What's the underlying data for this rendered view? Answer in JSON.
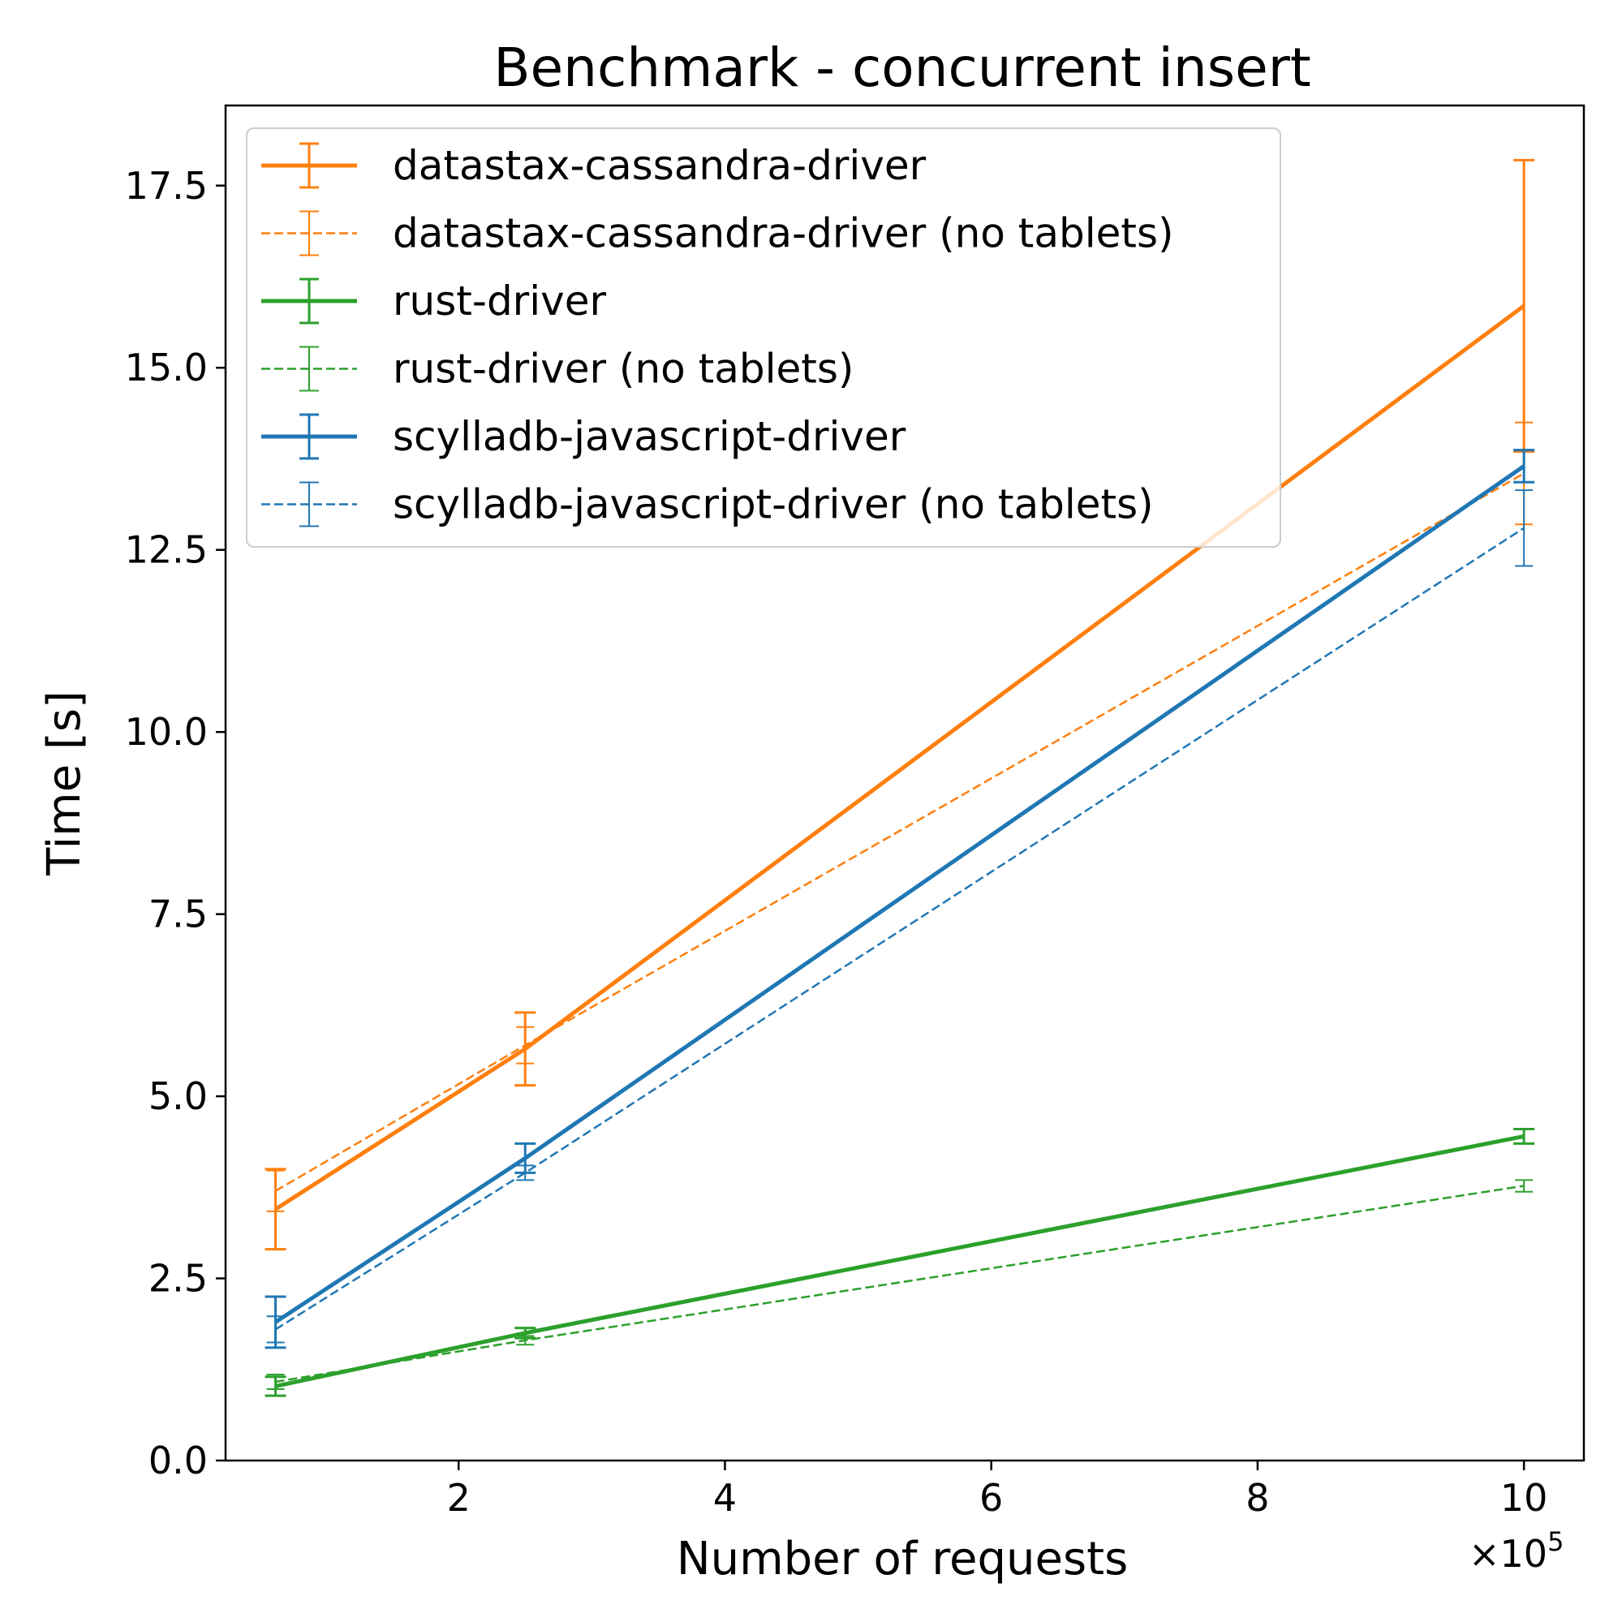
{
  "chart_data": {
    "type": "line",
    "title": "Benchmark - concurrent insert",
    "xlabel": "Number of requests",
    "ylabel": "Time [s]",
    "x_multiplier_base": "×10",
    "x_multiplier_exp": "5",
    "xlim": [
      0.25,
      10.45
    ],
    "ylim": [
      0,
      18.6
    ],
    "xticks": [
      2,
      4,
      6,
      8,
      10
    ],
    "xtick_labels": [
      "2",
      "4",
      "6",
      "8",
      "10"
    ],
    "yticks": [
      0,
      2.5,
      5,
      7.5,
      10,
      12.5,
      15,
      17.5
    ],
    "ytick_labels": [
      "0.0",
      "2.5",
      "5.0",
      "7.5",
      "10.0",
      "12.5",
      "15.0",
      "17.5"
    ],
    "x": [
      0.625,
      2.5,
      10
    ],
    "grid": false,
    "legend_position": "upper-left",
    "series": [
      {
        "name": "datastax-cassandra-driver",
        "color": "#ff7f0e",
        "style": "solid",
        "values": [
          3.45,
          5.65,
          15.85
        ],
        "errors": [
          0.55,
          0.5,
          2.0
        ]
      },
      {
        "name": "datastax-cassandra-driver (no tablets)",
        "color": "#ff7f0e",
        "style": "dashed",
        "values": [
          3.7,
          5.7,
          13.55
        ],
        "errors": [
          0.28,
          0.25,
          0.7
        ]
      },
      {
        "name": "rust-driver",
        "color": "#2ca02c",
        "style": "solid",
        "values": [
          1.02,
          1.75,
          4.45
        ],
        "errors": [
          0.13,
          0.07,
          0.1
        ]
      },
      {
        "name": "rust-driver (no tablets)",
        "color": "#2ca02c",
        "style": "dashed",
        "values": [
          1.08,
          1.65,
          3.77
        ],
        "errors": [
          0.1,
          0.06,
          0.08
        ]
      },
      {
        "name": "scylladb-javascript-driver",
        "color": "#1f77b4",
        "style": "solid",
        "values": [
          1.9,
          4.15,
          13.65
        ],
        "errors": [
          0.35,
          0.2,
          0.22
        ]
      },
      {
        "name": "scylladb-javascript-driver (no tablets)",
        "color": "#1f77b4",
        "style": "dashed",
        "values": [
          1.8,
          3.95,
          12.8
        ],
        "errors": [
          0.18,
          0.1,
          0.52
        ]
      }
    ]
  }
}
